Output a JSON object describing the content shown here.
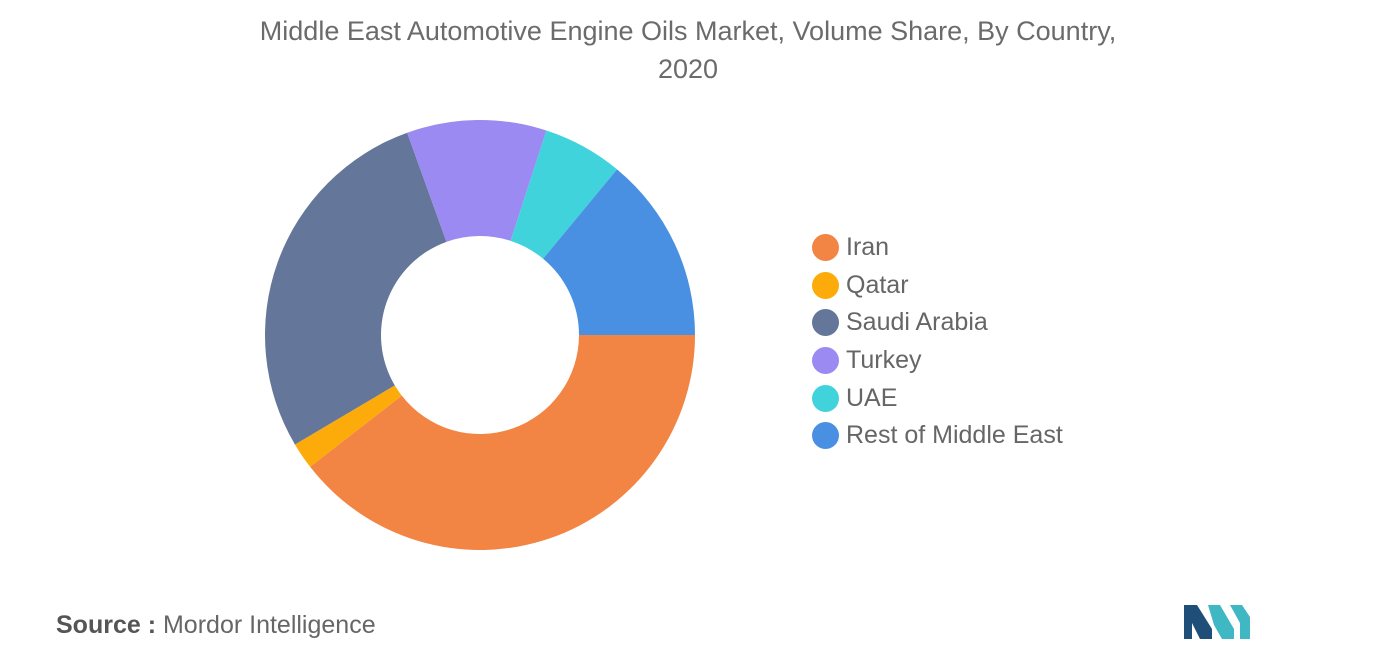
{
  "title": {
    "line1": "Middle East Automotive Engine Oils Market, Volume Share, By Country,",
    "line2": "2020"
  },
  "chart_data": {
    "type": "pie",
    "style": "donut",
    "title": "Middle East Automotive Engine Oils Market, Volume Share, By Country, 2020",
    "unit": "%",
    "legend_position": "right",
    "slices": [
      {
        "name": "Iran",
        "value": 39.5,
        "color": "#f28444"
      },
      {
        "name": "Qatar",
        "value": 2.0,
        "color": "#fdab0a"
      },
      {
        "name": "Saudi Arabia",
        "value": 28.0,
        "color": "#647699"
      },
      {
        "name": "Turkey",
        "value": 10.5,
        "color": "#9b8af1"
      },
      {
        "name": "UAE",
        "value": 6.0,
        "color": "#41d3dc"
      },
      {
        "name": "Rest of Middle East",
        "value": 14.0,
        "color": "#4a90e2"
      }
    ]
  },
  "source": {
    "label": "Source :",
    "text": "Mordor Intelligence"
  },
  "logo": {
    "colors": [
      "#1f4e79",
      "#3fb8c4"
    ]
  }
}
